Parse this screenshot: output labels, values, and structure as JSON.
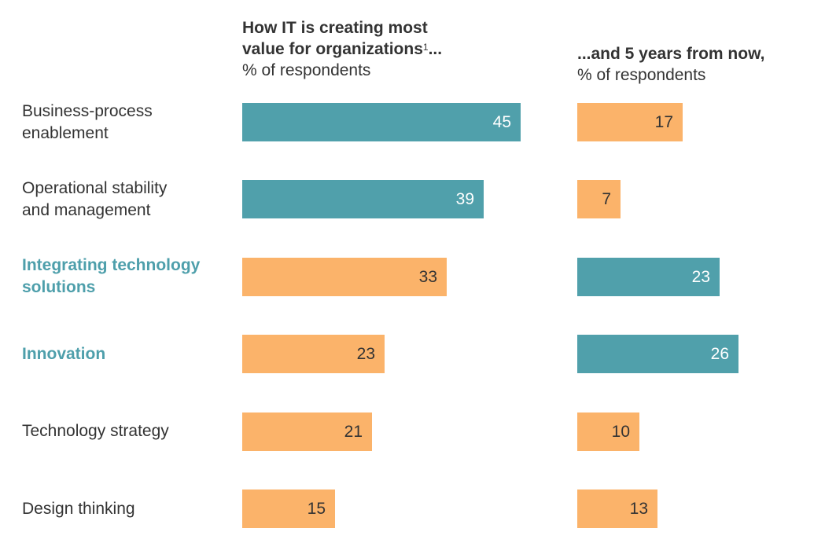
{
  "colors": {
    "highlight": "#50a0ab",
    "default": "#fbb36a",
    "highlight_text": "#4e9fab"
  },
  "chart_data": [
    {
      "type": "bar",
      "orientation": "horizontal",
      "title": "How IT is creating most value for organizations",
      "title_footnote": "1",
      "title_suffix": "...",
      "subtitle": "% of respondents",
      "categories": [
        "Business-process enablement",
        "Operational stability and management",
        "Integrating technology solutions",
        "Innovation",
        "Technology strategy",
        "Design thinking"
      ],
      "values": [
        45,
        39,
        33,
        23,
        21,
        15
      ],
      "highlighted": [
        true,
        true,
        false,
        false,
        false,
        false
      ],
      "xlim": [
        0,
        45
      ]
    },
    {
      "type": "bar",
      "orientation": "horizontal",
      "title": "...and 5 years from now,",
      "subtitle": "% of respondents",
      "categories": [
        "Business-process enablement",
        "Operational stability and management",
        "Integrating technology solutions",
        "Innovation",
        "Technology strategy",
        "Design thinking"
      ],
      "values": [
        17,
        7,
        23,
        26,
        10,
        13
      ],
      "highlighted": [
        false,
        false,
        true,
        true,
        false,
        false
      ],
      "xlim": [
        0,
        45
      ]
    }
  ],
  "labels": [
    {
      "lines": [
        "Business-process",
        "enablement"
      ],
      "emphasized": false
    },
    {
      "lines": [
        "Operational stability",
        "and management"
      ],
      "emphasized": false
    },
    {
      "lines": [
        "Integrating technology",
        "solutions"
      ],
      "emphasized": true
    },
    {
      "lines": [
        "Innovation"
      ],
      "emphasized": true
    },
    {
      "lines": [
        "Technology strategy"
      ],
      "emphasized": false
    },
    {
      "lines": [
        "Design thinking"
      ],
      "emphasized": false
    }
  ]
}
